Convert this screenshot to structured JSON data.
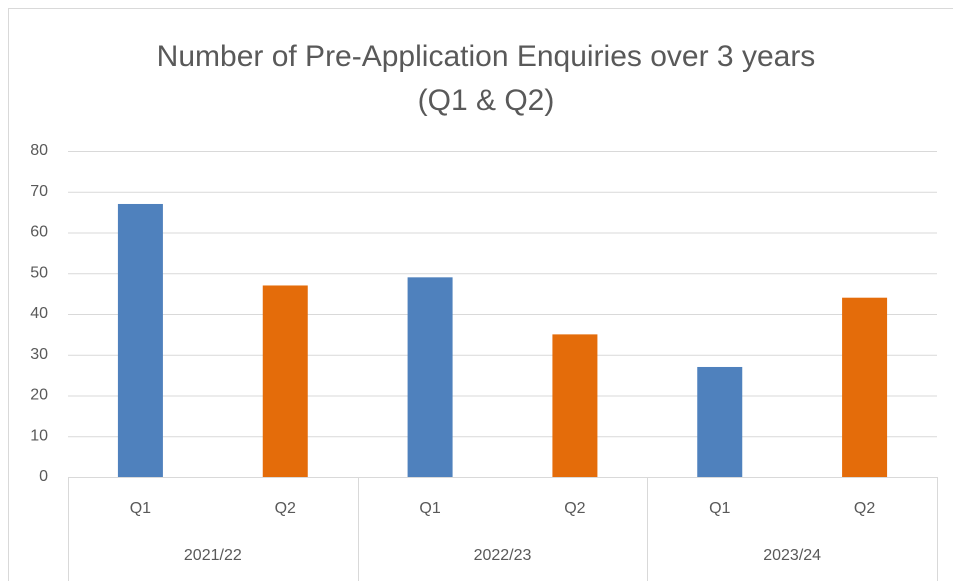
{
  "chart_data": {
    "type": "bar",
    "title": [
      "Number of Pre-Application Enquiries over 3 years",
      "(Q1 & Q2)"
    ],
    "categories": [
      "Q1",
      "Q2",
      "Q1",
      "Q2",
      "Q1",
      "Q2"
    ],
    "groups": [
      "2021/22",
      "2022/23",
      "2023/24"
    ],
    "values": [
      67,
      47,
      49,
      35,
      27,
      44
    ],
    "colors": [
      "#4f81bd",
      "#e46c0a",
      "#4f81bd",
      "#e46c0a",
      "#4f81bd",
      "#e46c0a"
    ],
    "ylim": [
      0,
      80
    ],
    "yticks": [
      0,
      10,
      20,
      30,
      40,
      50,
      60,
      70,
      80
    ],
    "grid": true
  }
}
